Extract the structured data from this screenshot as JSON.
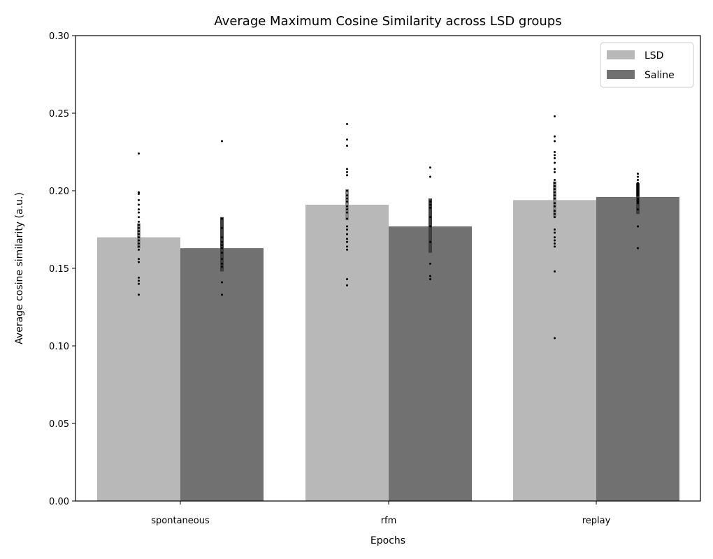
{
  "chart_data": {
    "type": "bar",
    "title": "Average Maximum Cosine Similarity across LSD groups",
    "xlabel": "Epochs",
    "ylabel": "Average cosine similarity (a.u.)",
    "categories": [
      "spontaneous",
      "rfm",
      "replay"
    ],
    "ylim": [
      0,
      0.3
    ],
    "yticks": [
      "0.00",
      "0.05",
      "0.10",
      "0.15",
      "0.20",
      "0.25",
      "0.30"
    ],
    "legend_position": "top-right",
    "grid": false,
    "series": [
      {
        "name": "LSD",
        "color": "#b8b8b8",
        "values": [
          0.17,
          0.191,
          0.194
        ],
        "error": [
          [
            0.163,
            0.179
          ],
          [
            0.181,
            0.201
          ],
          [
            0.183,
            0.206
          ]
        ],
        "points": [
          [
            0.224,
            0.199,
            0.198,
            0.194,
            0.191,
            0.188,
            0.186,
            0.183,
            0.18,
            0.178,
            0.176,
            0.174,
            0.172,
            0.17,
            0.168,
            0.166,
            0.164,
            0.162,
            0.156,
            0.154,
            0.144,
            0.142,
            0.14,
            0.133
          ],
          [
            0.243,
            0.233,
            0.229,
            0.214,
            0.212,
            0.21,
            0.2,
            0.197,
            0.195,
            0.193,
            0.19,
            0.188,
            0.186,
            0.182,
            0.177,
            0.175,
            0.172,
            0.169,
            0.167,
            0.164,
            0.162,
            0.143,
            0.139
          ],
          [
            0.248,
            0.235,
            0.232,
            0.225,
            0.223,
            0.221,
            0.218,
            0.214,
            0.212,
            0.207,
            0.205,
            0.203,
            0.201,
            0.199,
            0.197,
            0.195,
            0.192,
            0.19,
            0.187,
            0.185,
            0.183,
            0.175,
            0.173,
            0.17,
            0.168,
            0.166,
            0.164,
            0.148,
            0.105
          ]
        ]
      },
      {
        "name": "Saline",
        "color": "#717171",
        "values": [
          0.163,
          0.177,
          0.196
        ],
        "error": [
          [
            0.148,
            0.183
          ],
          [
            0.16,
            0.195
          ],
          [
            0.185,
            0.205
          ]
        ],
        "points": [
          [
            0.232,
            0.182,
            0.176,
            0.17,
            0.167,
            0.165,
            0.163,
            0.16,
            0.156,
            0.153,
            0.151,
            0.141,
            0.133
          ],
          [
            0.215,
            0.209,
            0.193,
            0.191,
            0.189,
            0.183,
            0.177,
            0.167,
            0.153,
            0.145,
            0.143
          ],
          [
            0.211,
            0.209,
            0.207,
            0.205,
            0.204,
            0.203,
            0.202,
            0.201,
            0.2,
            0.199,
            0.198,
            0.197,
            0.195,
            0.194,
            0.193,
            0.192,
            0.188,
            0.177,
            0.163
          ]
        ]
      }
    ]
  }
}
